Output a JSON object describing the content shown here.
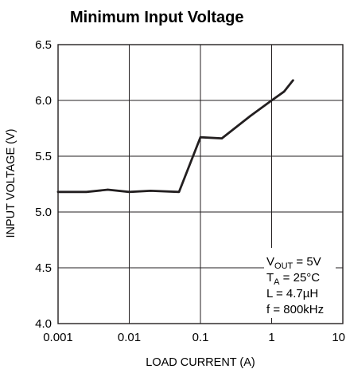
{
  "chart_data": {
    "type": "line",
    "title": "Minimum Input Voltage",
    "xlabel": "LOAD CURRENT (A)",
    "ylabel": "INPUT VOLTAGE (V)",
    "x_scale": "log",
    "xlim": [
      0.001,
      10
    ],
    "ylim": [
      4.0,
      6.5
    ],
    "x_ticks": [
      0.001,
      0.01,
      0.1,
      1,
      10
    ],
    "x_tick_labels": [
      "0.001",
      "0.01",
      "0.1",
      "1",
      "10"
    ],
    "y_ticks": [
      4.0,
      4.5,
      5.0,
      5.5,
      6.0,
      6.5
    ],
    "y_tick_labels": [
      "4.0",
      "4.5",
      "5.0",
      "5.5",
      "6.0",
      "6.5"
    ],
    "grid": true,
    "series": [
      {
        "x": [
          0.001,
          0.0025,
          0.005,
          0.01,
          0.02,
          0.05,
          0.1,
          0.2,
          0.5,
          1,
          1.5,
          2
        ],
        "y": [
          5.18,
          5.18,
          5.2,
          5.18,
          5.19,
          5.18,
          5.67,
          5.66,
          5.86,
          6.0,
          6.08,
          6.18
        ]
      }
    ],
    "annotation": {
      "line1_main": "V",
      "line1_sub": "OUT",
      "line1_rest": " = 5V",
      "line2_main": "T",
      "line2_sub": "A",
      "line2_rest": " = 25°C",
      "line3": "L = 4.7µH",
      "line4": "f = 800kHz"
    }
  }
}
